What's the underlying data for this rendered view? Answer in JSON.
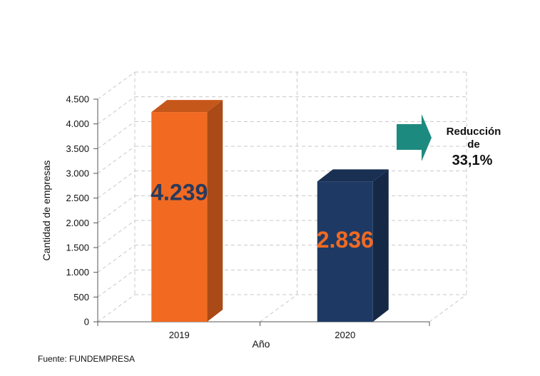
{
  "chart_data": {
    "type": "bar",
    "style": "3d-bar",
    "categories": [
      "2019",
      "2020"
    ],
    "values": [
      4239,
      2836
    ],
    "data_labels": [
      "4.239",
      "2.836"
    ],
    "xlabel": "Año",
    "ylabel": "Cantidad de empresas",
    "ylim": [
      0,
      4500
    ],
    "yticks": [
      0,
      500,
      1000,
      1500,
      2000,
      2500,
      3000,
      3500,
      4000,
      4500
    ],
    "ytick_labels": [
      "0",
      "500",
      "1.000",
      "1.500",
      "2.000",
      "2.500",
      "3.000",
      "3.500",
      "4.000",
      "4.500"
    ],
    "grid": true,
    "bar_colors": [
      "#F26A21",
      "#1E3A64"
    ],
    "label_colors": [
      "#2A3A5C",
      "#F26A21"
    ],
    "annotation": {
      "lines": [
        "Reducción",
        "de",
        "33,1%"
      ],
      "arrow_color": "#1D8A80"
    }
  },
  "source": "Fuente: FUNDEMPRESA"
}
